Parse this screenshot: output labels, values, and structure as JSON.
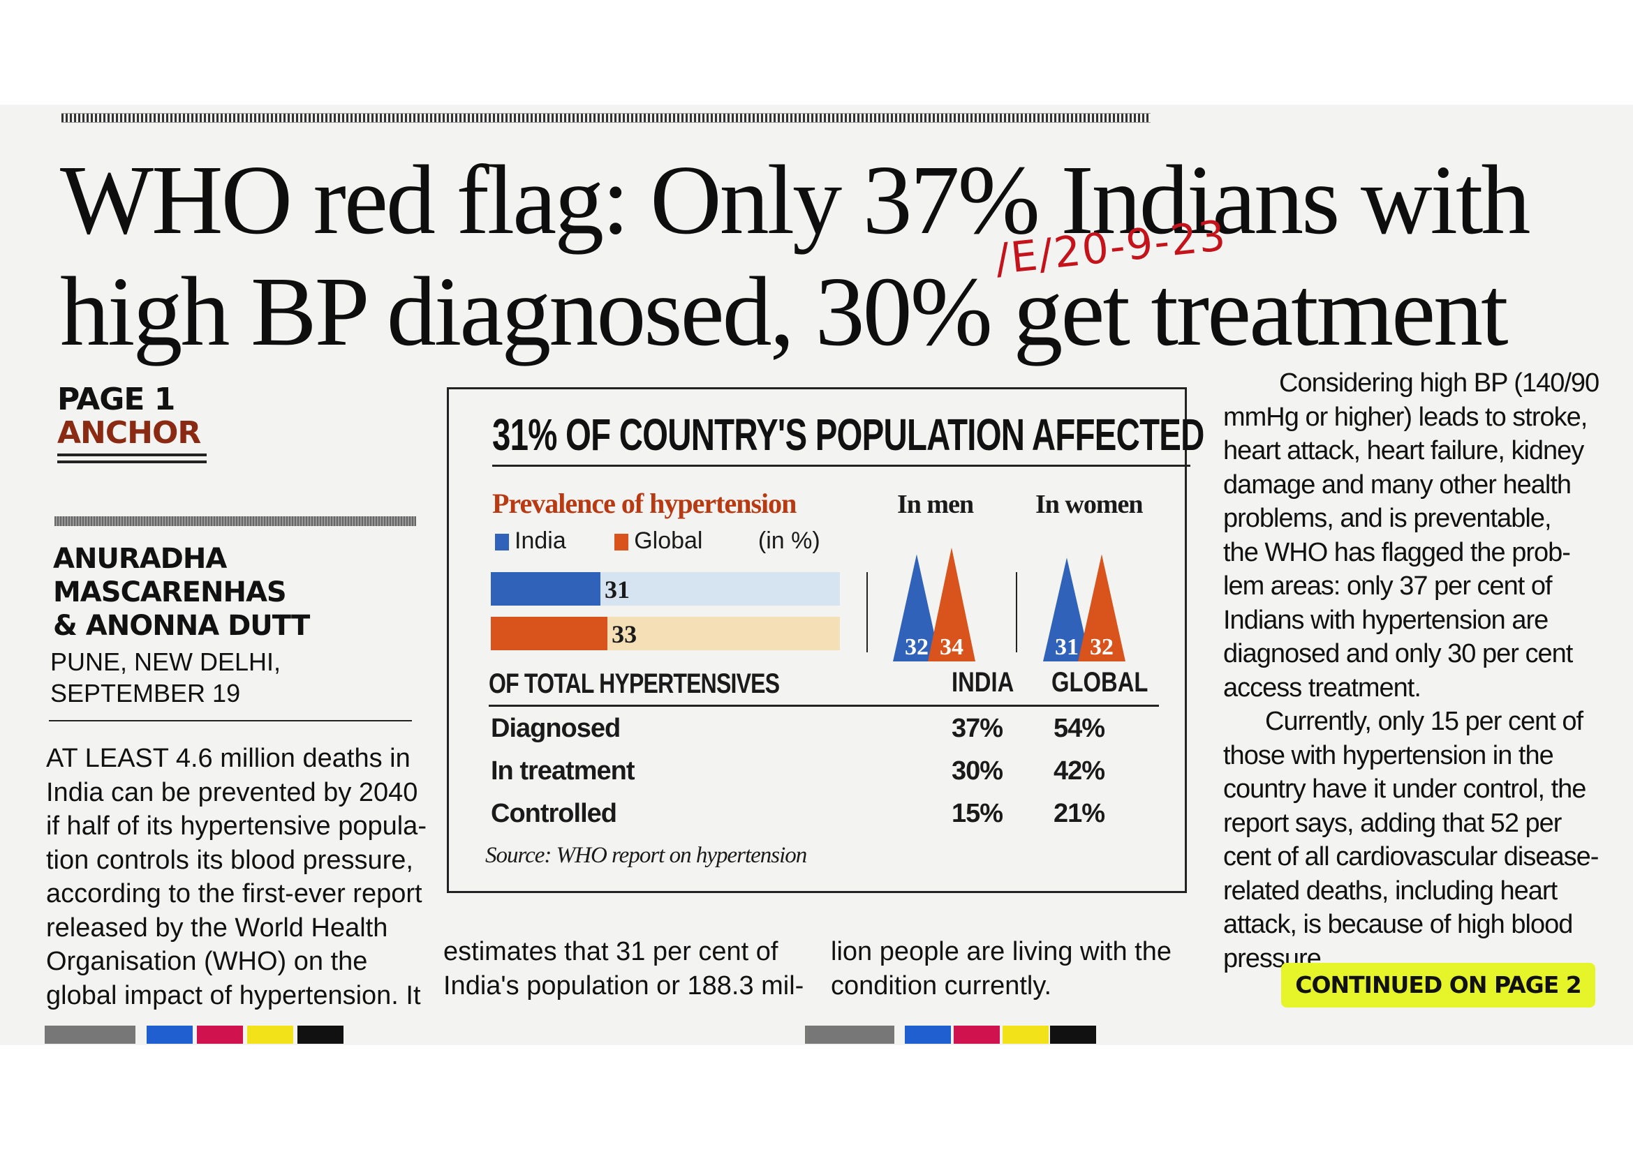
{
  "headline": {
    "line1": "WHO red flag: Only 37% Indians with",
    "line2": "high BP diagnosed, 30% get treatment"
  },
  "handwritten_note": "/E/20-9-23",
  "section": {
    "line1": "PAGE 1",
    "line2": "ANCHOR"
  },
  "byline": {
    "line1": "ANURADHA",
    "line2": "MASCARENHAS",
    "line3": "& ANONNA DUTT"
  },
  "dateline": {
    "line1": "PUNE, NEW DELHI,",
    "line2": "SEPTEMBER 19"
  },
  "column1": [
    "AT LEAST 4.6 million deaths in",
    "India can be prevented by 2040",
    "if half of its hypertensive popula-",
    "tion controls its blood pressure,",
    "according to the first-ever report",
    "released by the World Health",
    "Organisation (WHO) on the",
    "global impact of hypertension. It"
  ],
  "column2": [
    "estimates that 31 per cent of",
    "India's population or 188.3 mil-"
  ],
  "column3": [
    "lion people are living with the",
    "condition currently."
  ],
  "column4": [
    "Considering high BP (140/90",
    "mmHg or higher) leads to stroke,",
    "heart attack, heart failure, kidney",
    "damage and many other health",
    "problems, and is preventable,",
    "the WHO has flagged the prob-",
    "lem areas: only 37 per cent of",
    "Indians with hypertension are",
    "diagnosed and only 30 per cent",
    "access treatment.",
    "Currently, only 15 per cent of",
    "those with hypertension in the",
    "country have it under control, the",
    "report says, adding that 52 per",
    "cent of all cardiovascular disease-",
    "related deaths, including heart",
    "attack, is because of high blood",
    "pressure."
  ],
  "continued": "CONTINUED ON PAGE 2",
  "colors": {
    "india": "#2f62b8",
    "global": "#d8541c",
    "prevalence_title": "#b83a12",
    "highlight": "#e6f52a",
    "handnote": "#c4131b"
  },
  "chart_data": [
    {
      "type": "bar",
      "title": "31% OF COUNTRY'S POPULATION AFFECTED",
      "subtitle": "Prevalence of hypertension",
      "unit": "(in %)",
      "legend": [
        "India",
        "Global"
      ],
      "series": [
        {
          "name": "India",
          "values": [
            31
          ]
        },
        {
          "name": "Global",
          "values": [
            33
          ]
        }
      ],
      "ylim": [
        0,
        100
      ]
    },
    {
      "type": "bar",
      "groups": [
        "In men",
        "In women"
      ],
      "series": [
        {
          "name": "India",
          "values": [
            32,
            31
          ]
        },
        {
          "name": "Global",
          "values": [
            34,
            32
          ]
        }
      ]
    },
    {
      "type": "table",
      "title": "OF TOTAL HYPERTENSIVES",
      "columns": [
        "INDIA",
        "GLOBAL"
      ],
      "rows": [
        {
          "label": "Diagnosed",
          "values": [
            "37%",
            "54%"
          ]
        },
        {
          "label": "In treatment",
          "values": [
            "30%",
            "42%"
          ]
        },
        {
          "label": "Controlled",
          "values": [
            "15%",
            "21%"
          ]
        }
      ],
      "source": "Source: WHO report on hypertension"
    }
  ]
}
